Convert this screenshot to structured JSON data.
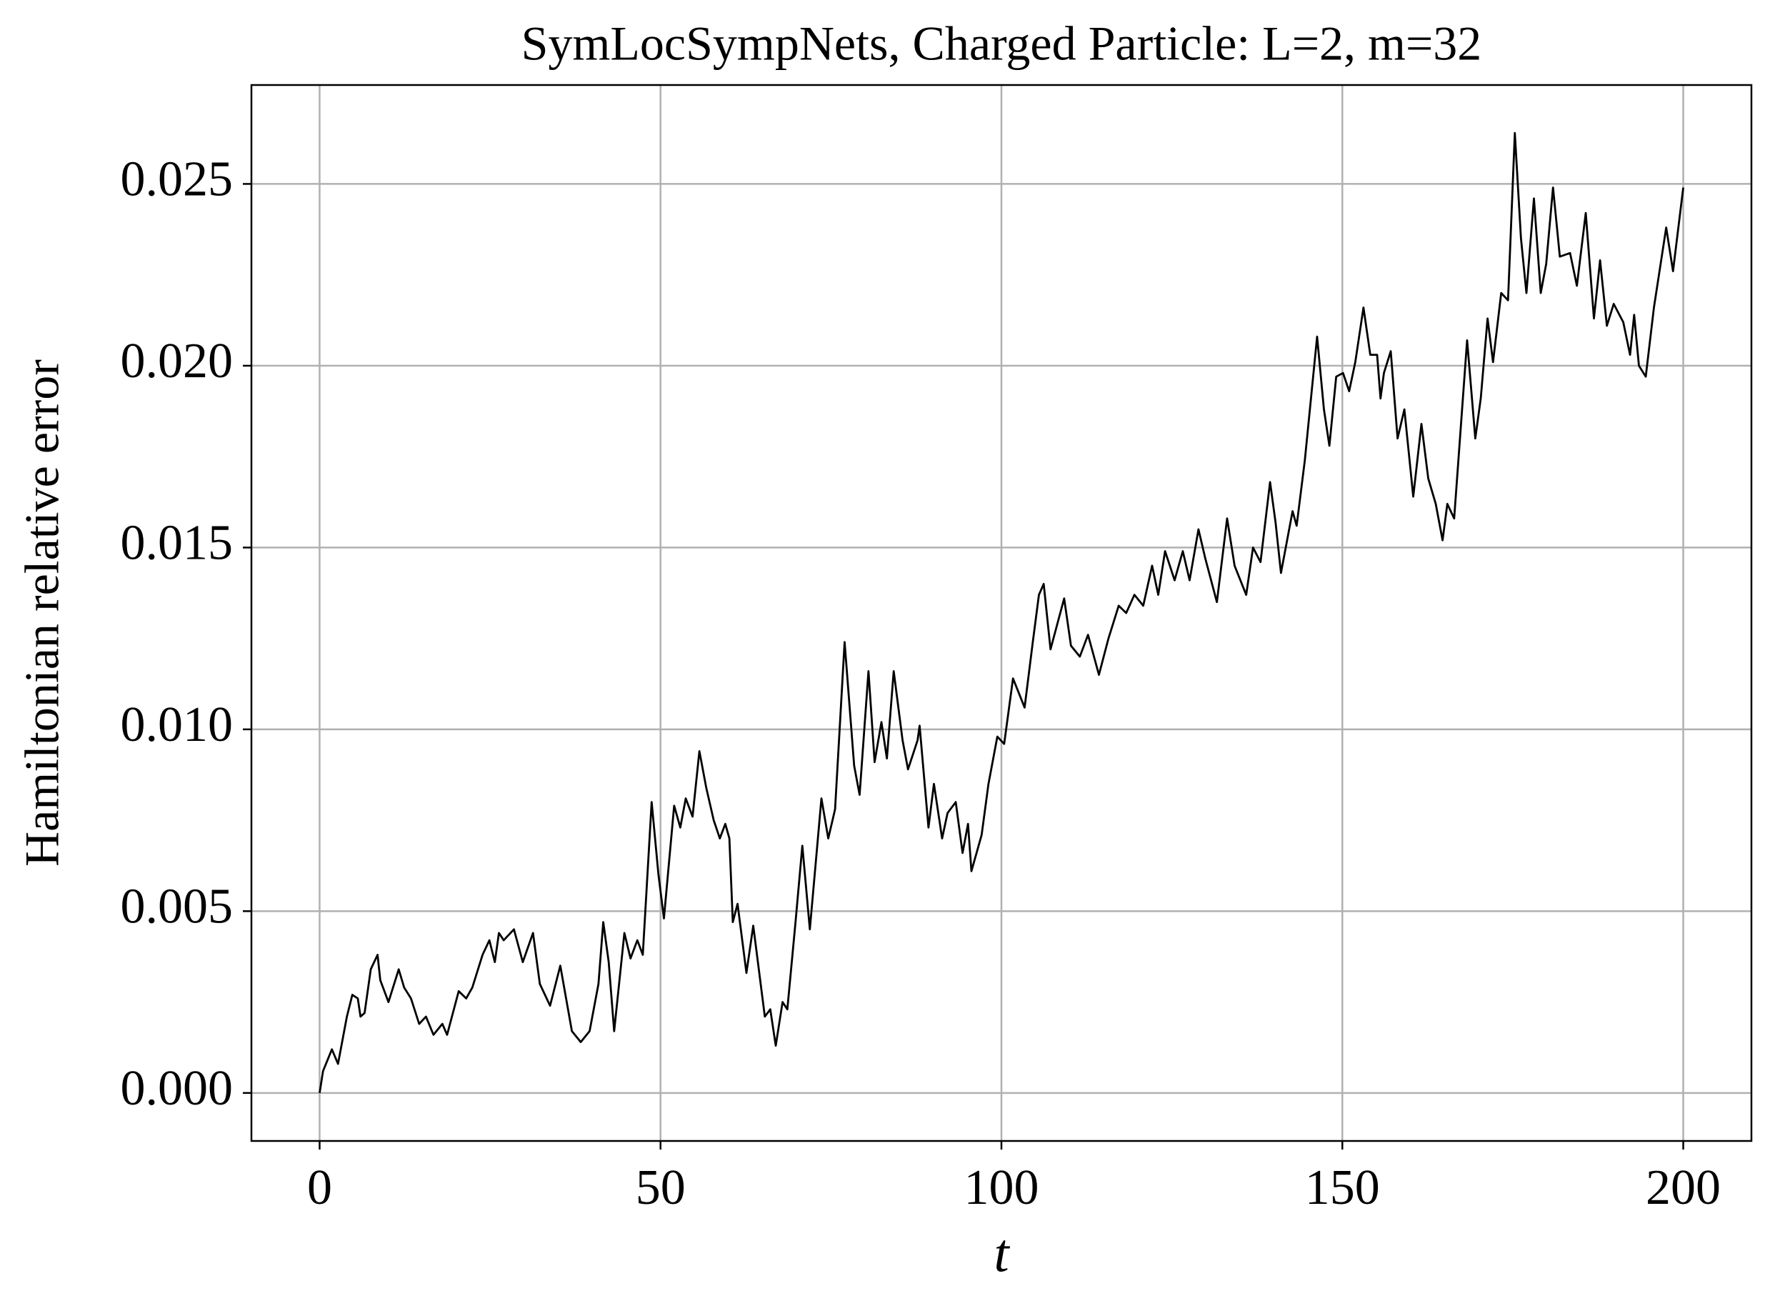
{
  "chart_data": {
    "type": "line",
    "title": "SymLocSympNets, Charged Particle: L=2, m=32",
    "x_label": "t",
    "y_label": "Hamiltonian relative error",
    "xlim": [
      -10,
      210
    ],
    "ylim": [
      -0.00132,
      0.02772
    ],
    "xticks": [
      0,
      50,
      100,
      150,
      200
    ],
    "yticks": [
      {
        "value": 0,
        "label": "0.000"
      },
      0.005,
      {
        "value": 0.01,
        "label": "0.010"
      },
      0.015,
      {
        "value": 0.02,
        "label": "0.020"
      },
      0.025
    ],
    "grid": true,
    "series": [
      {
        "color": "#000000",
        "x": [
          0,
          0.5,
          1.8,
          2.7,
          4,
          4.8,
          5.6,
          6,
          6.6,
          7.5,
          8.5,
          8.9,
          10.1,
          11.6,
          12.4,
          13.4,
          14.6,
          15.6,
          16.7,
          18,
          18.7,
          20.4,
          21.5,
          22.4,
          23.9,
          24.9,
          25.7,
          26.3,
          27,
          28.5,
          29.8,
          31.3,
          32.3,
          33.8,
          35.3,
          37,
          38.3,
          39.6,
          40.9,
          41.6,
          42.4,
          43.2,
          44.7,
          45.6,
          46.6,
          47.4,
          48.7,
          49.7,
          50.5,
          52,
          52.9,
          53.7,
          54.7,
          55.7,
          56.7,
          57.8,
          58.7,
          59.5,
          60.1,
          60.6,
          61.3,
          62.6,
          63.6,
          65.3,
          66.1,
          66.9,
          67.9,
          68.6,
          69.8,
          70.8,
          71.9,
          73.6,
          74.6,
          75.6,
          77,
          78.4,
          79.2,
          80.5,
          81.4,
          82.4,
          83.2,
          84.2,
          85.5,
          86.3,
          87.7,
          88,
          89.3,
          90.1,
          91.3,
          92.1,
          93.3,
          94.3,
          95.1,
          95.6,
          97.1,
          98.1,
          99.4,
          100.4,
          101.7,
          103.4,
          104.6,
          105.5,
          106.2,
          107.2,
          109.2,
          110.2,
          111.5,
          112.7,
          114.3,
          115.7,
          117.2,
          118.3,
          119.5,
          120.8,
          122.1,
          123,
          124,
          125.4,
          126.6,
          127.6,
          128.9,
          129.9,
          131.6,
          133.1,
          134.2,
          135.9,
          136.9,
          138,
          139.4,
          140.2,
          141,
          142.7,
          143.3,
          144.5,
          146.3,
          147.3,
          148.1,
          149.1,
          150.1,
          151,
          151.9,
          153.1,
          154.1,
          155.1,
          155.6,
          156.1,
          157.1,
          158.1,
          159.1,
          160.4,
          161.6,
          162.6,
          163.7,
          164.7,
          165.4,
          166.4,
          168.3,
          169.5,
          170.3,
          171.3,
          172.1,
          173.3,
          174.3,
          175.3,
          176.2,
          177,
          178.1,
          179.1,
          179.9,
          180.9,
          181.9,
          183.4,
          184.4,
          185.7,
          186.9,
          187.8,
          188.8,
          189.8,
          191.2,
          192.2,
          192.8,
          193.5,
          194.5,
          195.7,
          197.5,
          198.5,
          200
        ],
        "values": [
          0,
          0.0006,
          0.0012,
          0.0008,
          0.0021,
          0.0027,
          0.0026,
          0.0021,
          0.0022,
          0.0034,
          0.0038,
          0.0031,
          0.0025,
          0.0034,
          0.0029,
          0.0026,
          0.0019,
          0.0021,
          0.0016,
          0.0019,
          0.0016,
          0.0028,
          0.0026,
          0.0029,
          0.0038,
          0.0042,
          0.0036,
          0.0044,
          0.0042,
          0.0045,
          0.0036,
          0.0044,
          0.003,
          0.0024,
          0.0035,
          0.0017,
          0.0014,
          0.0017,
          0.003,
          0.0047,
          0.0036,
          0.0017,
          0.0044,
          0.0037,
          0.0042,
          0.0038,
          0.008,
          0.006,
          0.0048,
          0.0079,
          0.0073,
          0.0081,
          0.0076,
          0.0094,
          0.0084,
          0.0075,
          0.007,
          0.0074,
          0.007,
          0.0047,
          0.0052,
          0.0033,
          0.0046,
          0.0021,
          0.0023,
          0.0013,
          0.0025,
          0.0023,
          0.0047,
          0.0068,
          0.0045,
          0.0081,
          0.007,
          0.0078,
          0.0124,
          0.009,
          0.0082,
          0.0116,
          0.0091,
          0.0102,
          0.0092,
          0.0116,
          0.0097,
          0.0089,
          0.0097,
          0.0101,
          0.0073,
          0.0085,
          0.007,
          0.0077,
          0.008,
          0.0066,
          0.0074,
          0.0061,
          0.0071,
          0.0085,
          0.0098,
          0.0096,
          0.0114,
          0.0106,
          0.0124,
          0.0137,
          0.014,
          0.0122,
          0.0136,
          0.0123,
          0.012,
          0.0126,
          0.0115,
          0.0125,
          0.0134,
          0.0132,
          0.0137,
          0.0134,
          0.0145,
          0.0137,
          0.0149,
          0.0141,
          0.0149,
          0.0141,
          0.0155,
          0.0147,
          0.0135,
          0.0158,
          0.0145,
          0.0137,
          0.015,
          0.0146,
          0.0168,
          0.0157,
          0.0143,
          0.016,
          0.0156,
          0.0174,
          0.0208,
          0.0188,
          0.0178,
          0.0197,
          0.0198,
          0.0193,
          0.0201,
          0.0216,
          0.0203,
          0.0203,
          0.0191,
          0.0198,
          0.0204,
          0.018,
          0.0188,
          0.0164,
          0.0184,
          0.0169,
          0.0162,
          0.0152,
          0.0162,
          0.0158,
          0.0207,
          0.018,
          0.0191,
          0.0213,
          0.0201,
          0.022,
          0.0218,
          0.0264,
          0.0235,
          0.022,
          0.0246,
          0.022,
          0.0228,
          0.0249,
          0.023,
          0.0231,
          0.0222,
          0.0242,
          0.0213,
          0.0229,
          0.0211,
          0.0217,
          0.0212,
          0.0203,
          0.0214,
          0.02,
          0.0197,
          0.0216,
          0.0238,
          0.0226,
          0.0249
        ]
      }
    ]
  }
}
